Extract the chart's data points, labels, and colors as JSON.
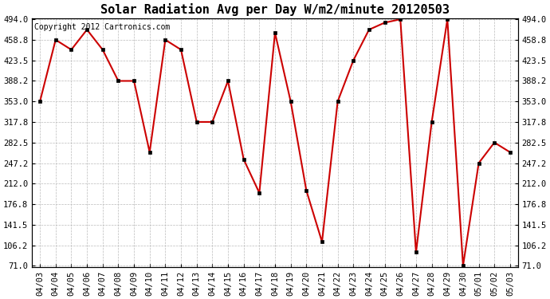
{
  "title": "Solar Radiation Avg per Day W/m2/minute 20120503",
  "copyright_text": "Copyright 2012 Cartronics.com",
  "x_labels": [
    "04/03",
    "04/04",
    "04/05",
    "04/06",
    "04/07",
    "04/08",
    "04/09",
    "04/10",
    "04/11",
    "04/12",
    "04/13",
    "04/14",
    "04/15",
    "04/16",
    "04/17",
    "04/18",
    "04/19",
    "04/20",
    "04/21",
    "04/22",
    "04/23",
    "04/24",
    "04/25",
    "04/26",
    "04/27",
    "04/28",
    "04/29",
    "04/30",
    "05/01",
    "05/02",
    "05/03"
  ],
  "y_values": [
    353.0,
    458.8,
    441.8,
    476.2,
    441.8,
    388.2,
    388.2,
    265.8,
    458.8,
    441.8,
    317.8,
    317.8,
    388.2,
    253.6,
    196.0,
    470.8,
    353.0,
    200.2,
    112.0,
    353.0,
    423.5,
    476.2,
    488.2,
    494.0,
    94.0,
    317.8,
    494.0,
    71.0,
    247.2,
    282.5,
    265.8
  ],
  "line_color": "#cc0000",
  "marker_color": "#000000",
  "background_color": "#ffffff",
  "grid_color": "#bbbbbb",
  "ylim_min": 71.0,
  "ylim_max": 494.0,
  "yticks": [
    71.0,
    106.2,
    141.5,
    176.8,
    212.0,
    247.2,
    282.5,
    317.8,
    353.0,
    388.2,
    423.5,
    458.8,
    494.0
  ],
  "title_fontsize": 11,
  "copyright_fontsize": 7,
  "tick_fontsize": 7.5
}
